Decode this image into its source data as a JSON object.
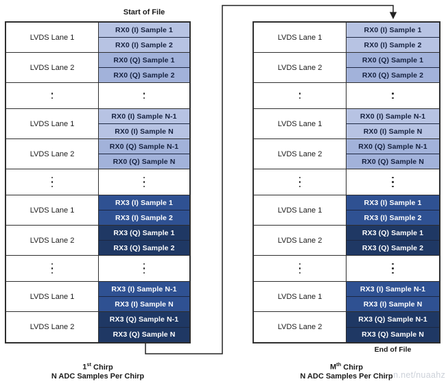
{
  "header": {
    "start_of_file": "Start of File"
  },
  "footer": {
    "end_of_file": "End of File"
  },
  "captions": {
    "left": {
      "chirp_index": "1",
      "chirp_sup": "st",
      "chirp_word": "Chirp",
      "line2": "N ADC Samples Per Chirp"
    },
    "right": {
      "chirp_index": "M",
      "chirp_sup": "th",
      "chirp_word": "Chirp",
      "line2": "N ADC Samples Per Chirp"
    }
  },
  "watermark": {
    "text": "n.net/nuaahz"
  },
  "colors": {
    "rx0_i": "#b7c3e3",
    "rx0_q": "#a2b2da",
    "rx3_i": "#2f5192",
    "rx3_q": "#1f3864",
    "light_cell_text": "#16213f",
    "dark_cell_text": "#ffffff",
    "line": "#222222"
  },
  "tables": {
    "left": {
      "rows": [
        {
          "type": "lane",
          "label": "LVDS Lane 1",
          "cells": [
            {
              "text": "RX0 (I) Sample 1",
              "color": "rx0_i"
            },
            {
              "text": "RX0 (I) Sample 2",
              "color": "rx0_i"
            }
          ]
        },
        {
          "type": "lane",
          "label": "LVDS Lane 2",
          "cells": [
            {
              "text": "RX0 (Q) Sample 1",
              "color": "rx0_q"
            },
            {
              "text": "RX0 (Q) Sample 2",
              "color": "rx0_q"
            }
          ]
        },
        {
          "type": "dots",
          "count": 2
        },
        {
          "type": "lane",
          "label": "LVDS Lane 1",
          "cells": [
            {
              "text": "RX0 (I) Sample N-1",
              "color": "rx0_i"
            },
            {
              "text": "RX0 (I) Sample N",
              "color": "rx0_i"
            }
          ]
        },
        {
          "type": "lane",
          "label": "LVDS Lane 2",
          "cells": [
            {
              "text": "RX0 (Q) Sample N-1",
              "color": "rx0_q"
            },
            {
              "text": "RX0 (Q) Sample N",
              "color": "rx0_q"
            }
          ]
        },
        {
          "type": "dots",
          "count": 3
        },
        {
          "type": "lane",
          "label": "LVDS Lane 1",
          "cells": [
            {
              "text": "RX3 (I) Sample 1",
              "color": "rx3_i"
            },
            {
              "text": "RX3 (I) Sample 2",
              "color": "rx3_i"
            }
          ]
        },
        {
          "type": "lane",
          "label": "LVDS Lane 2",
          "cells": [
            {
              "text": "RX3 (Q) Sample 1",
              "color": "rx3_q"
            },
            {
              "text": "RX3 (Q) Sample 2",
              "color": "rx3_q"
            }
          ]
        },
        {
          "type": "dots",
          "count": 3
        },
        {
          "type": "lane",
          "label": "LVDS Lane 1",
          "cells": [
            {
              "text": "RX3 (I) Sample N-1",
              "color": "rx3_i"
            },
            {
              "text": "RX3 (I) Sample N",
              "color": "rx3_i"
            }
          ]
        },
        {
          "type": "lane",
          "label": "LVDS Lane 2",
          "cells": [
            {
              "text": "RX3 (Q) Sample N-1",
              "color": "rx3_q"
            },
            {
              "text": "RX3 (Q) Sample N",
              "color": "rx3_q"
            }
          ]
        }
      ]
    },
    "right": {
      "rows": [
        {
          "type": "lane",
          "label": "LVDS Lane 1",
          "cells": [
            {
              "text": "RX0 (I) Sample 1",
              "color": "rx0_i"
            },
            {
              "text": "RX0 (I) Sample 2",
              "color": "rx0_i"
            }
          ]
        },
        {
          "type": "lane",
          "label": "LVDS Lane 2",
          "cells": [
            {
              "text": "RX0 (Q) Sample 1",
              "color": "rx0_q"
            },
            {
              "text": "RX0 (Q) Sample 2",
              "color": "rx0_q"
            }
          ]
        },
        {
          "type": "dots",
          "count": 2
        },
        {
          "type": "lane",
          "label": "LVDS Lane 1",
          "cells": [
            {
              "text": "RX0 (I) Sample N-1",
              "color": "rx0_i"
            },
            {
              "text": "RX0 (I) Sample N",
              "color": "rx0_i"
            }
          ]
        },
        {
          "type": "lane",
          "label": "LVDS Lane 2",
          "cells": [
            {
              "text": "RX0 (Q) Sample N-1",
              "color": "rx0_q"
            },
            {
              "text": "RX0 (Q) Sample N",
              "color": "rx0_q"
            }
          ]
        },
        {
          "type": "dots",
          "count": 3
        },
        {
          "type": "lane",
          "label": "LVDS Lane 1",
          "cells": [
            {
              "text": "RX3 (I) Sample 1",
              "color": "rx3_i"
            },
            {
              "text": "RX3 (I) Sample 2",
              "color": "rx3_i"
            }
          ]
        },
        {
          "type": "lane",
          "label": "LVDS Lane 2",
          "cells": [
            {
              "text": "RX3 (Q) Sample 1",
              "color": "rx3_q"
            },
            {
              "text": "RX3 (Q) Sample 2",
              "color": "rx3_q"
            }
          ]
        },
        {
          "type": "dots",
          "count": 3
        },
        {
          "type": "lane",
          "label": "LVDS Lane 1",
          "cells": [
            {
              "text": "RX3 (I) Sample N-1",
              "color": "rx3_i"
            },
            {
              "text": "RX3 (I) Sample N",
              "color": "rx3_i"
            }
          ]
        },
        {
          "type": "lane",
          "label": "LVDS Lane 2",
          "cells": [
            {
              "text": "RX3 (Q) Sample N-1",
              "color": "rx3_q"
            },
            {
              "text": "RX3 (Q) Sample N",
              "color": "rx3_q"
            }
          ]
        }
      ]
    }
  }
}
